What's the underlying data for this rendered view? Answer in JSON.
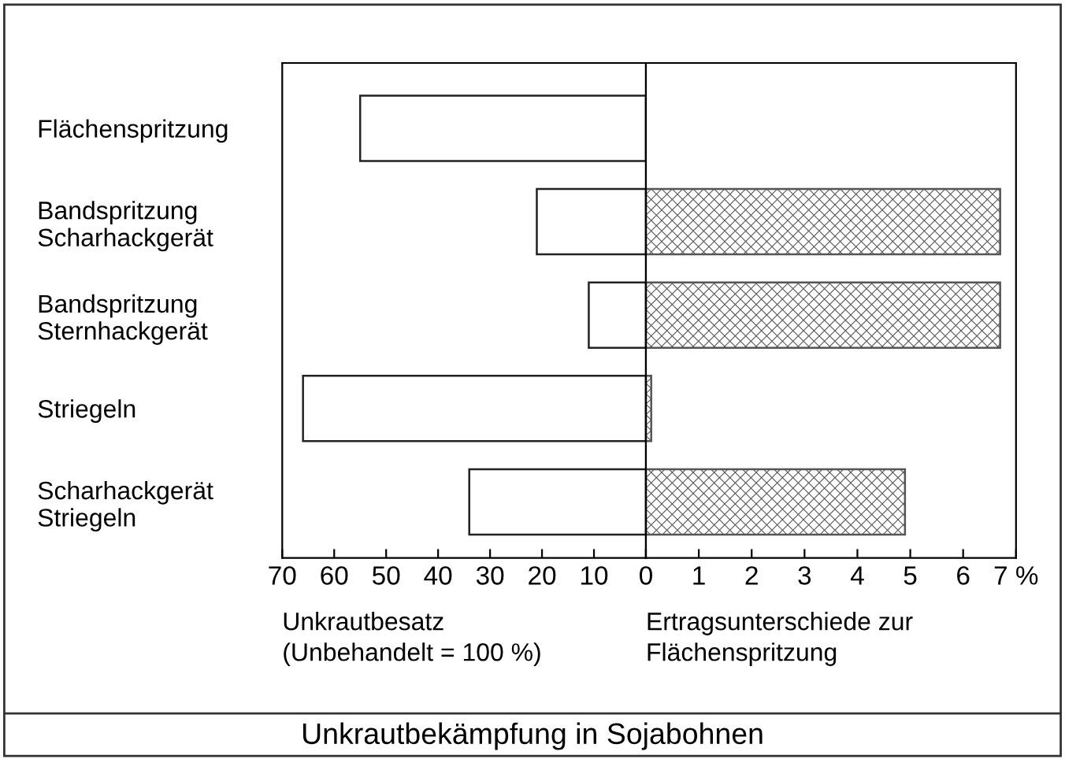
{
  "chart_data": [
    {
      "type": "bar",
      "orientation": "horizontal",
      "title": "Unkrautbekämpfung in Sojabohnen",
      "xlabel": "Unkrautbesatz\n(Unbehandelt = 100 %)",
      "categories": [
        "Flächenspritzung",
        "Bandspritzung\nScharhackgerät",
        "Bandspritzung\nSternhackgerät",
        "Striegeln",
        "Scharhackgerät\nStriegeln"
      ],
      "series": [
        {
          "color": "#ffffff",
          "values": [
            55,
            21,
            11,
            66,
            34
          ]
        }
      ],
      "xlim": [
        70,
        0
      ],
      "xticks": [
        70,
        60,
        50,
        40,
        30,
        20,
        10,
        {
          "value": 0,
          "label": null
        }
      ],
      "grid": false,
      "legend": false
    },
    {
      "type": "bar",
      "orientation": "horizontal",
      "xlabel": "Ertragsunterschiede zur\nFlächenspritzung",
      "series": [
        {
          "color": "#555555",
          "values": [
            null,
            6.7,
            6.7,
            0.1,
            4.9
          ]
        }
      ],
      "xlim": [
        0,
        7
      ],
      "xticks": [
        0,
        1,
        2,
        3,
        4,
        5,
        6,
        {
          "value": 7,
          "label": "7 %"
        }
      ],
      "tick_labels": "x",
      "grid": false,
      "legend": false
    }
  ]
}
